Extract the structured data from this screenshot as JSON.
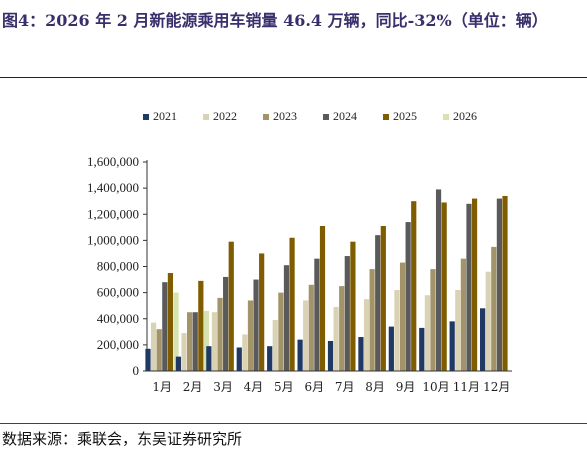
{
  "header": {
    "title": "图4：2026 年 2 月新能源乘用车销量 46.4 万辆，同比-32%（单位：辆）"
  },
  "footer": {
    "source": "数据来源：乘联会，东吴证券研究所"
  },
  "chart_data": {
    "type": "bar",
    "title": "",
    "xlabel": "",
    "ylabel": "",
    "ylim": [
      0,
      1600000
    ],
    "yticks": [
      0,
      200000,
      400000,
      600000,
      800000,
      1000000,
      1200000,
      1400000,
      1600000
    ],
    "ytick_labels": [
      "0",
      "200,000",
      "400,000",
      "600,000",
      "800,000",
      "1,000,000",
      "1,200,000",
      "1,400,000",
      "1,600,000"
    ],
    "legend_position": "top",
    "categories": [
      "1月",
      "2月",
      "3月",
      "4月",
      "5月",
      "6月",
      "7月",
      "8月",
      "9月",
      "10月",
      "11月",
      "12月"
    ],
    "series": [
      {
        "name": "2021",
        "color": "#1f3864",
        "values": [
          170000,
          110000,
          190000,
          180000,
          190000,
          240000,
          230000,
          260000,
          340000,
          330000,
          380000,
          480000
        ]
      },
      {
        "name": "2022",
        "color": "#d9d2b4",
        "values": [
          370000,
          290000,
          450000,
          280000,
          390000,
          540000,
          490000,
          550000,
          620000,
          580000,
          620000,
          760000
        ]
      },
      {
        "name": "2023",
        "color": "#a29468",
        "values": [
          320000,
          450000,
          560000,
          540000,
          600000,
          660000,
          650000,
          780000,
          830000,
          780000,
          860000,
          950000
        ]
      },
      {
        "name": "2024",
        "color": "#5a5a5a",
        "values": [
          680000,
          450000,
          720000,
          700000,
          810000,
          860000,
          880000,
          1040000,
          1140000,
          1390000,
          1280000,
          1320000
        ]
      },
      {
        "name": "2025",
        "color": "#7f5c00",
        "values": [
          750000,
          690000,
          990000,
          900000,
          1020000,
          1110000,
          990000,
          1110000,
          1300000,
          1290000,
          1320000,
          1340000
        ]
      },
      {
        "name": "2026",
        "color": "#d4e3b0",
        "values": [
          600000,
          460000,
          null,
          null,
          null,
          null,
          null,
          null,
          null,
          null,
          null,
          null
        ]
      }
    ]
  }
}
